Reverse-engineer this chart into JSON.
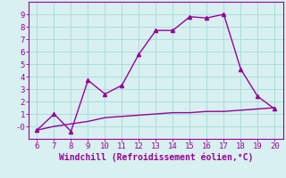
{
  "x": [
    6,
    7,
    8,
    9,
    10,
    11,
    12,
    13,
    14,
    15,
    16,
    17,
    18,
    19,
    20
  ],
  "y_line1": [
    -0.3,
    1.0,
    -0.4,
    3.7,
    2.6,
    3.3,
    5.8,
    7.7,
    7.7,
    8.8,
    8.7,
    9.0,
    4.6,
    2.4,
    1.4
  ],
  "y_line2": [
    -0.3,
    0.0,
    0.2,
    0.4,
    0.7,
    0.8,
    0.9,
    1.0,
    1.1,
    1.1,
    1.2,
    1.2,
    1.3,
    1.4,
    1.5
  ],
  "line_color": "#990099",
  "bg_color": "#d8f0f0",
  "grid_color": "#aadddd",
  "xlabel": "Windchill (Refroidissement éolien,°C)",
  "xlim": [
    5.5,
    20.5
  ],
  "ylim": [
    -1.0,
    10.0
  ],
  "yticks": [
    0,
    1,
    2,
    3,
    4,
    5,
    6,
    7,
    8,
    9
  ],
  "xticks": [
    6,
    7,
    8,
    9,
    10,
    11,
    12,
    13,
    14,
    15,
    16,
    17,
    18,
    19,
    20
  ],
  "marker": "^",
  "marker_size": 3,
  "line_width": 1.0,
  "xlabel_fontsize": 7,
  "tick_fontsize": 6.5
}
